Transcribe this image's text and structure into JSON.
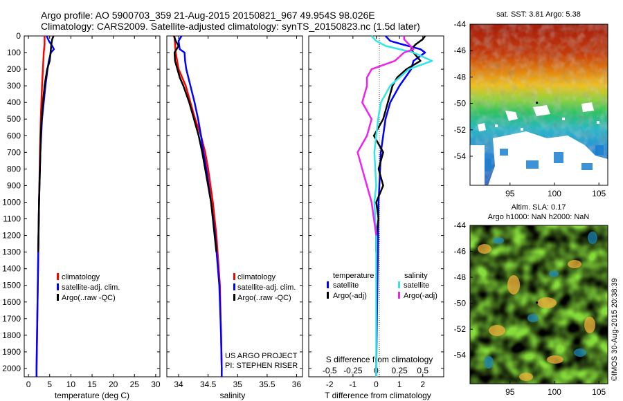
{
  "title_line1": "Argo profile: AO 5900703_359 21-Aug-2015 20150821_967 49.954S 98.026E",
  "title_line2": "Climatology: CARS2009. Satellite-adjusted climatology: synTS_20150823.nc (1.5d later)",
  "sst_title": "sat. SST: 3.81 Argo: 5.38",
  "sla_title_line1": "Altim. SLA: 0.17",
  "sla_title_line2": "Argo h1000: NaN h2000: NaN",
  "credit": "US ARGO PROJECT",
  "pi": "PI: STEPHEN RISER",
  "stamp": "©IMOS 30-Aug-2015 20:38:39",
  "colors": {
    "climatology": "#ff0000",
    "satellite_adj": "#0000ff",
    "argo": "#000000",
    "sal_satellite": "#33e6e6",
    "sal_argo": "#ee22ee"
  },
  "chart_data": [
    {
      "type": "line",
      "name": "temperature",
      "xlabel": "temperature (deg C)",
      "ylabel": "",
      "xlim": [
        -1,
        31
      ],
      "ylim": [
        2050,
        0
      ],
      "xticks": [
        "0",
        "5",
        "10",
        "15",
        "20",
        "25",
        "30"
      ],
      "yticks": [
        "0",
        "100",
        "200",
        "300",
        "400",
        "500",
        "600",
        "700",
        "800",
        "900",
        "1000",
        "1100",
        "1200",
        "1300",
        "1400",
        "1500",
        "1600",
        "1700",
        "1800",
        "1900",
        "2000"
      ],
      "legend": [
        "climatology",
        "satellite-adj. clim.",
        "Argo(..raw -QC)"
      ],
      "series": [
        {
          "name": "climatology",
          "depth": [
            0,
            50,
            100,
            200,
            300,
            500,
            700,
            1000,
            1500,
            2000,
            2050
          ],
          "values": [
            3.8,
            3.8,
            3.6,
            3.4,
            3.2,
            2.9,
            2.7,
            2.5,
            2.2,
            1.9,
            1.9
          ]
        },
        {
          "name": "satellite-adj. clim.",
          "depth": [
            0,
            30,
            60,
            80,
            100,
            150,
            200,
            300,
            500,
            700,
            1000,
            1500,
            2000,
            2050
          ],
          "values": [
            4.3,
            4.8,
            5.6,
            6.0,
            5.3,
            4.8,
            4.5,
            4.0,
            3.2,
            2.8,
            2.5,
            2.2,
            1.9,
            1.9
          ]
        },
        {
          "name": "Argo(..raw -QC)",
          "depth": [
            0,
            20,
            50,
            100,
            150,
            200,
            250,
            300,
            400,
            500,
            600,
            800,
            1000,
            1300
          ],
          "values": [
            5.9,
            5.6,
            5.4,
            5.2,
            5.0,
            4.4,
            4.1,
            3.8,
            3.4,
            3.1,
            2.9,
            2.7,
            2.5,
            2.3
          ]
        }
      ]
    },
    {
      "type": "line",
      "name": "salinity",
      "xlabel": "salinity",
      "ylabel": "",
      "xlim": [
        33.8,
        36.1
      ],
      "ylim": [
        2050,
        0
      ],
      "xticks": [
        "34",
        "34.5",
        "35",
        "35.5",
        "36"
      ],
      "legend": [
        "climatology",
        "satellite-adj. clim.",
        "Argo(..raw -QC)"
      ],
      "series": [
        {
          "name": "climatology",
          "depth": [
            0,
            50,
            100,
            200,
            300,
            400,
            500,
            600,
            700,
            800,
            1000,
            1200,
            1500,
            2000,
            2050
          ],
          "values": [
            33.93,
            33.94,
            33.95,
            34.0,
            34.12,
            34.2,
            34.28,
            34.38,
            34.45,
            34.5,
            34.58,
            34.64,
            34.7,
            34.73,
            34.73
          ]
        },
        {
          "name": "satellite-adj. clim.",
          "depth": [
            0,
            30,
            80,
            100,
            150,
            200,
            300,
            400,
            500,
            600,
            700,
            800,
            1000,
            1200,
            1500,
            1800,
            2000,
            2050
          ],
          "values": [
            34.05,
            34.0,
            34.02,
            34.1,
            34.11,
            34.13,
            34.2,
            34.27,
            34.33,
            34.38,
            34.42,
            34.47,
            34.55,
            34.62,
            34.69,
            34.72,
            34.73,
            34.73
          ]
        },
        {
          "name": "Argo(..raw -QC)",
          "depth": [
            0,
            30,
            60,
            100,
            150,
            200,
            250,
            300,
            400,
            500,
            600,
            700,
            800,
            1000,
            1300
          ],
          "values": [
            33.92,
            33.95,
            34.0,
            33.93,
            33.94,
            33.98,
            34.02,
            34.08,
            34.18,
            34.26,
            34.34,
            34.4,
            34.45,
            34.55,
            34.64
          ]
        }
      ]
    },
    {
      "type": "line",
      "name": "differences",
      "xlabel": "T difference from climatology",
      "xlabel_top": "S difference from climatology",
      "xlim": [
        -2.9,
        2.9
      ],
      "ylim": [
        2050,
        0
      ],
      "xticks": [
        "-2",
        "-1",
        "0",
        "1",
        "2"
      ],
      "xticks_s": [
        "-0.5",
        "-0.25",
        "0",
        "0.25",
        "0.5"
      ],
      "legend_left_title": "temperature",
      "legend_right_title": "salinity",
      "legend": [
        "satellite",
        "Argo(-adj)",
        "satellite",
        "Argo(-adj)"
      ],
      "series": [
        {
          "name": "temperature satellite",
          "depth": [
            0,
            30,
            50,
            80,
            100,
            150,
            200,
            300,
            400,
            500,
            700,
            1000,
            1500,
            2000,
            2050
          ],
          "values": [
            0.4,
            0.6,
            1.1,
            1.9,
            2.1,
            1.6,
            1.5,
            1.0,
            0.6,
            0.4,
            0.2,
            0.1,
            0.05,
            0.0,
            0.0
          ]
        },
        {
          "name": "temperature Argo(-adj)",
          "depth": [
            0,
            20,
            50,
            80,
            100,
            150,
            200,
            250,
            300,
            400,
            500,
            600,
            700,
            800,
            900,
            1000,
            1100,
            1200,
            1300
          ],
          "values": [
            2.1,
            2.0,
            1.7,
            1.5,
            1.6,
            1.9,
            1.3,
            0.9,
            0.7,
            0.5,
            0.3,
            -0.1,
            0.3,
            0.1,
            0.3,
            0.0,
            0.1,
            0.0,
            0.0
          ]
        },
        {
          "name": "salinity satellite",
          "depth": [
            0,
            30,
            60,
            100,
            150,
            200,
            300,
            400,
            500,
            700,
            900,
            1000,
            1200,
            1500,
            2000,
            2050
          ],
          "values": [
            -0.05,
            0.0,
            0.1,
            0.4,
            0.6,
            0.35,
            0.15,
            0.05,
            0.02,
            -0.02,
            0.0,
            -0.02,
            0.0,
            0.0,
            0.0,
            0.0
          ]
        },
        {
          "name": "salinity Argo(-adj)",
          "depth": [
            0,
            20,
            50,
            80,
            100,
            150,
            200,
            250,
            300,
            400,
            500,
            600,
            700,
            800,
            1000,
            1200
          ],
          "values": [
            0.3,
            0.3,
            0.35,
            0.4,
            0.3,
            0.2,
            -0.05,
            -0.1,
            -0.1,
            -0.15,
            -0.05,
            -0.1,
            -0.2,
            -0.15,
            -0.05,
            0.0
          ]
        }
      ]
    },
    {
      "type": "heatmap",
      "name": "satellite SST map",
      "title": "sat. SST: 3.81 Argo: 5.38",
      "xlim": [
        90.5,
        106
      ],
      "ylim": [
        -56.2,
        -44
      ],
      "xticks": [
        "95",
        "100",
        "105"
      ],
      "yticks": [
        "-44",
        "-46",
        "-48",
        "-50",
        "-52",
        "-54"
      ],
      "argo_position": {
        "lon": 98.026,
        "lat": -49.954
      },
      "description_values": "warm (red) north of -48, cooling to blue south of -52, land/cloud gaps white"
    },
    {
      "type": "heatmap",
      "name": "altimetry SLA map",
      "title": "Altim. SLA: 0.17",
      "subtitle": "Argo h1000: NaN h2000: NaN",
      "xlim": [
        90.5,
        106
      ],
      "ylim": [
        -56.2,
        -44
      ],
      "xticks": [
        "95",
        "100",
        "105"
      ],
      "yticks": [
        "-44",
        "-46",
        "-48",
        "-50",
        "-52",
        "-54"
      ],
      "argo_position": {
        "lon": 98.026,
        "lat": -49.954
      }
    }
  ]
}
